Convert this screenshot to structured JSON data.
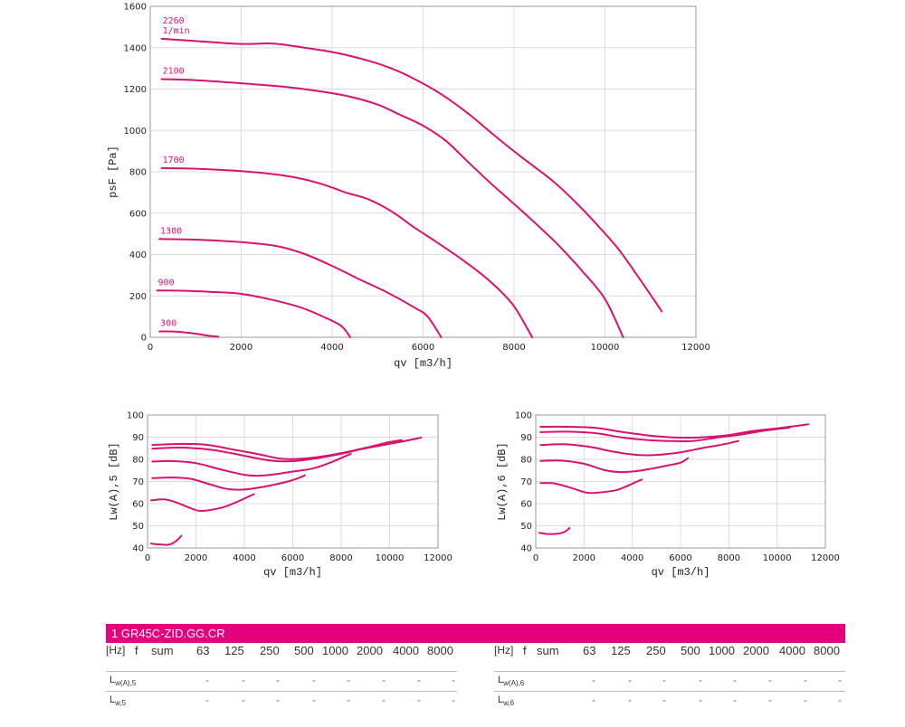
{
  "chart_data": [
    {
      "type": "line",
      "xlabel": "qv [m3/h]",
      "ylabel": "psF [Pa]",
      "xlim": [
        0,
        12000
      ],
      "ylim": [
        0,
        1600
      ],
      "xticks": [
        "0",
        "2000",
        "4000",
        "6000",
        "8000",
        "10000",
        "12000"
      ],
      "yticks": [
        "0",
        "200",
        "400",
        "600",
        "800",
        "1000",
        "1200",
        "1400",
        "1600"
      ],
      "grid": true,
      "series": [
        {
          "name": "2260\n1/min",
          "points": [
            [
              250,
              1443
            ],
            [
              1000,
              1432
            ],
            [
              2000,
              1418
            ],
            [
              2700,
              1420
            ],
            [
              3400,
              1400
            ],
            [
              4100,
              1375
            ],
            [
              4800,
              1337
            ],
            [
              5300,
              1300
            ],
            [
              5800,
              1250
            ],
            [
              6400,
              1175
            ],
            [
              7000,
              1080
            ],
            [
              7600,
              970
            ],
            [
              8200,
              865
            ],
            [
              8800,
              765
            ],
            [
              9300,
              665
            ],
            [
              9800,
              550
            ],
            [
              10300,
              425
            ],
            [
              10800,
              270
            ],
            [
              11250,
              125
            ]
          ]
        },
        {
          "name": "2100",
          "points": [
            [
              250,
              1248
            ],
            [
              1000,
              1243
            ],
            [
              2000,
              1228
            ],
            [
              3000,
              1210
            ],
            [
              3800,
              1187
            ],
            [
              4400,
              1163
            ],
            [
              5000,
              1125
            ],
            [
              5500,
              1075
            ],
            [
              6000,
              1023
            ],
            [
              6500,
              950
            ],
            [
              7000,
              845
            ],
            [
              7500,
              742
            ],
            [
              8000,
              645
            ],
            [
              8500,
              545
            ],
            [
              9000,
              440
            ],
            [
              9500,
              320
            ],
            [
              10000,
              185
            ],
            [
              10400,
              0
            ]
          ]
        },
        {
          "name": "1700",
          "points": [
            [
              250,
              818
            ],
            [
              1000,
              815
            ],
            [
              2000,
              803
            ],
            [
              3000,
              780
            ],
            [
              3700,
              746
            ],
            [
              4300,
              700
            ],
            [
              4800,
              667
            ],
            [
              5300,
              610
            ],
            [
              5800,
              532
            ],
            [
              6300,
              460
            ],
            [
              6800,
              385
            ],
            [
              7200,
              320
            ],
            [
              7600,
              245
            ],
            [
              8000,
              150
            ],
            [
              8400,
              0
            ]
          ]
        },
        {
          "name": "1300",
          "points": [
            [
              200,
              475
            ],
            [
              1000,
              472
            ],
            [
              2000,
              460
            ],
            [
              2800,
              440
            ],
            [
              3400,
              402
            ],
            [
              4000,
              345
            ],
            [
              4600,
              280
            ],
            [
              5200,
              218
            ],
            [
              5800,
              145
            ],
            [
              6100,
              100
            ],
            [
              6400,
              0
            ]
          ]
        },
        {
          "name": "900",
          "points": [
            [
              150,
              226
            ],
            [
              700,
              225
            ],
            [
              1300,
              220
            ],
            [
              2000,
              210
            ],
            [
              2700,
              180
            ],
            [
              3300,
              145
            ],
            [
              3800,
              100
            ],
            [
              4200,
              55
            ],
            [
              4400,
              0
            ]
          ]
        },
        {
          "name": "300",
          "points": [
            [
              200,
              28
            ],
            [
              500,
              28
            ],
            [
              900,
              20
            ],
            [
              1200,
              10
            ],
            [
              1500,
              2
            ]
          ]
        }
      ]
    },
    {
      "type": "line",
      "xlabel": "qv [m3/h]",
      "ylabel": "Lw(A),5 [dB]",
      "xlim": [
        0,
        12000
      ],
      "ylim": [
        40,
        100
      ],
      "xticks": [
        "0",
        "2000",
        "4000",
        "6000",
        "8000",
        "10000",
        "12000"
      ],
      "yticks": [
        "40",
        "50",
        "60",
        "70",
        "80",
        "90",
        "100"
      ],
      "grid": true,
      "series": [
        {
          "points": [
            [
              200,
              86.5
            ],
            [
              1500,
              87
            ],
            [
              2500,
              86.5
            ],
            [
              3500,
              84.5
            ],
            [
              4500,
              82.5
            ],
            [
              5500,
              80.3
            ],
            [
              6200,
              80.2
            ],
            [
              7000,
              81
            ],
            [
              8000,
              82.8
            ],
            [
              9000,
              85.2
            ],
            [
              10000,
              87.8
            ],
            [
              10500,
              88.7
            ]
          ]
        },
        {
          "points": [
            [
              200,
              84.8
            ],
            [
              1300,
              85.3
            ],
            [
              2500,
              84.5
            ],
            [
              3500,
              82.7
            ],
            [
              4500,
              80.5
            ],
            [
              5200,
              79.3
            ],
            [
              6000,
              79.2
            ],
            [
              7000,
              80.5
            ],
            [
              8000,
              82.5
            ],
            [
              9000,
              85
            ],
            [
              10500,
              88
            ],
            [
              11300,
              89.8
            ]
          ]
        },
        {
          "points": [
            [
              200,
              79
            ],
            [
              1000,
              79.2
            ],
            [
              2000,
              78.3
            ],
            [
              3000,
              75.5
            ],
            [
              4000,
              73
            ],
            [
              4600,
              72.6
            ],
            [
              5300,
              73.3
            ],
            [
              6000,
              74.5
            ],
            [
              6800,
              75.8
            ],
            [
              7500,
              78.3
            ],
            [
              8400,
              82.5
            ]
          ]
        },
        {
          "points": [
            [
              200,
              71.5
            ],
            [
              1000,
              71.8
            ],
            [
              1800,
              71.2
            ],
            [
              2500,
              69
            ],
            [
              3200,
              66.8
            ],
            [
              3800,
              66.3
            ],
            [
              4400,
              66.9
            ],
            [
              5200,
              68.5
            ],
            [
              5800,
              70
            ],
            [
              6300,
              71.8
            ],
            [
              6500,
              72.8
            ]
          ]
        },
        {
          "points": [
            [
              150,
              61.5
            ],
            [
              700,
              61.9
            ],
            [
              1200,
              60.5
            ],
            [
              1700,
              58.3
            ],
            [
              2100,
              56.8
            ],
            [
              2500,
              57
            ],
            [
              3100,
              58.3
            ],
            [
              3700,
              60.8
            ],
            [
              4100,
              62.8
            ],
            [
              4400,
              64.3
            ]
          ]
        },
        {
          "points": [
            [
              150,
              42
            ],
            [
              500,
              41.6
            ],
            [
              900,
              41.5
            ],
            [
              1200,
              43.3
            ],
            [
              1400,
              45.5
            ]
          ]
        }
      ]
    },
    {
      "type": "line",
      "xlabel": "qv [m3/h]",
      "ylabel": "Lw(A),6 [dB]",
      "xlim": [
        0,
        12000
      ],
      "ylim": [
        40,
        100
      ],
      "xticks": [
        "0",
        "2000",
        "4000",
        "6000",
        "8000",
        "10000",
        "12000"
      ],
      "yticks": [
        "40",
        "50",
        "60",
        "70",
        "80",
        "90",
        "100"
      ],
      "grid": true,
      "series": [
        {
          "points": [
            [
              200,
              94.7
            ],
            [
              1300,
              94.7
            ],
            [
              2500,
              94.2
            ],
            [
              3500,
              92.5
            ],
            [
              4500,
              91
            ],
            [
              5500,
              90
            ],
            [
              6200,
              89.8
            ],
            [
              7000,
              90
            ],
            [
              8000,
              91
            ],
            [
              9000,
              92.8
            ],
            [
              10000,
              94
            ],
            [
              11300,
              95.8
            ]
          ]
        },
        {
          "points": [
            [
              200,
              92.3
            ],
            [
              1300,
              92.5
            ],
            [
              2500,
              91.8
            ],
            [
              3500,
              90
            ],
            [
              4500,
              88.8
            ],
            [
              5500,
              88.3
            ],
            [
              6500,
              88.3
            ],
            [
              7500,
              89.8
            ],
            [
              8500,
              91.2
            ],
            [
              9500,
              93
            ],
            [
              10500,
              94.3
            ]
          ]
        },
        {
          "points": [
            [
              200,
              86.5
            ],
            [
              1200,
              86.8
            ],
            [
              2200,
              85.7
            ],
            [
              3300,
              83.3
            ],
            [
              4200,
              82
            ],
            [
              5000,
              82
            ],
            [
              6000,
              83.2
            ],
            [
              7000,
              85.3
            ],
            [
              7800,
              86.8
            ],
            [
              8400,
              88.3
            ]
          ]
        },
        {
          "points": [
            [
              200,
              79.3
            ],
            [
              1100,
              79.4
            ],
            [
              2000,
              78
            ],
            [
              2800,
              75.3
            ],
            [
              3400,
              74.3
            ],
            [
              4100,
              74.6
            ],
            [
              4800,
              75.8
            ],
            [
              5500,
              77.3
            ],
            [
              6000,
              78.5
            ],
            [
              6300,
              80.5
            ]
          ]
        },
        {
          "points": [
            [
              200,
              69.3
            ],
            [
              800,
              69.1
            ],
            [
              1500,
              67
            ],
            [
              2100,
              65
            ],
            [
              2600,
              65
            ],
            [
              3300,
              66
            ],
            [
              3800,
              68
            ],
            [
              4200,
              70
            ],
            [
              4400,
              70.8
            ]
          ]
        },
        {
          "points": [
            [
              150,
              46.8
            ],
            [
              500,
              46.3
            ],
            [
              900,
              46.4
            ],
            [
              1200,
              47.3
            ],
            [
              1400,
              49
            ]
          ]
        }
      ]
    }
  ],
  "table": {
    "title": "1   GR45C-ZID.GG.CR",
    "columns": [
      "f",
      "sum",
      "63",
      "125",
      "250",
      "500",
      "1000",
      "2000",
      "4000",
      "8000"
    ],
    "hz": "[Hz]",
    "left": {
      "rows": [
        {
          "label": "L",
          "sub": "w(A),5",
          "values": [
            "-",
            "-",
            "-",
            "-",
            "-",
            "-",
            "-",
            "-"
          ]
        },
        {
          "label": "L",
          "sub": "w,5",
          "values": [
            "-",
            "-",
            "-",
            "-",
            "-",
            "-",
            "-",
            "-"
          ]
        }
      ]
    },
    "right": {
      "rows": [
        {
          "label": "L",
          "sub": "w(A),6",
          "values": [
            "-",
            "-",
            "-",
            "-",
            "-",
            "-",
            "-",
            "-"
          ]
        },
        {
          "label": "L",
          "sub": "w,6",
          "values": [
            "-",
            "-",
            "-",
            "-",
            "-",
            "-",
            "-",
            "-"
          ]
        }
      ]
    }
  }
}
